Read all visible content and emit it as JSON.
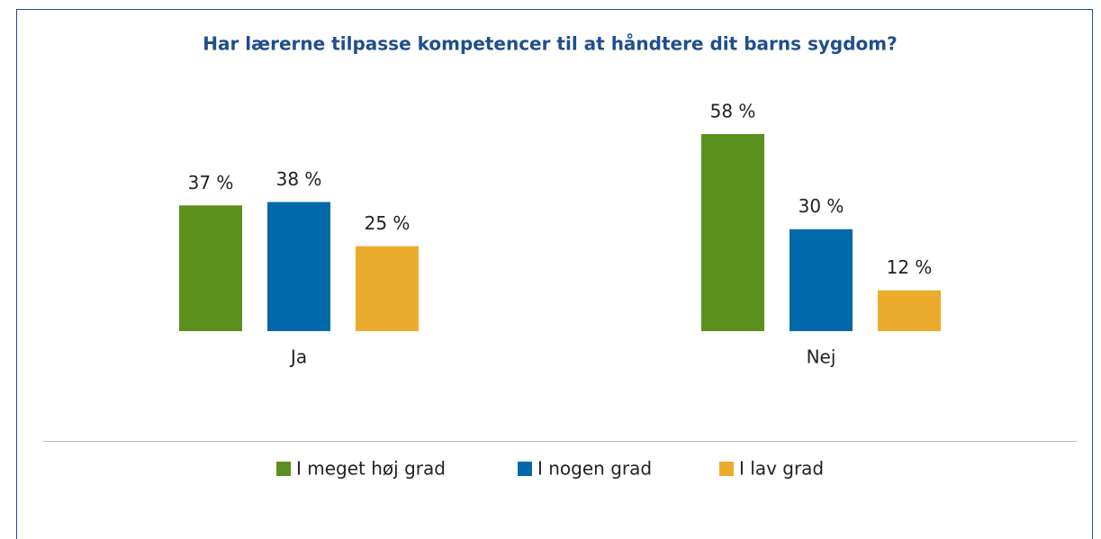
{
  "chart_data": {
    "type": "bar",
    "title": "Har lærerne tilpasse kompetencer til at håndtere dit barns sygdom?",
    "categories": [
      "Ja",
      "Nej"
    ],
    "series": [
      {
        "name": "I meget høj grad",
        "color": "#5b8f1e",
        "values": [
          37,
          58
        ],
        "value_labels": [
          "37 %",
          "58 %"
        ]
      },
      {
        "name": "I nogen grad",
        "color": "#0069aa",
        "values": [
          38,
          30
        ],
        "value_labels": [
          "38 %",
          "30 %"
        ]
      },
      {
        "name": "I lav grad",
        "color": "#ebab2d",
        "values": [
          25,
          12
        ],
        "value_labels": [
          "25 %",
          "12 %"
        ]
      }
    ],
    "legend": "bottom"
  }
}
